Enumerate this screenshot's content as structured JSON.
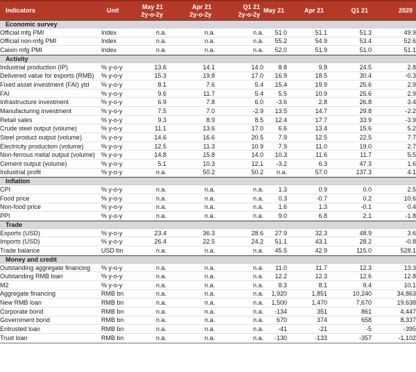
{
  "table": {
    "header": {
      "columns": [
        {
          "label": "Indicators"
        },
        {
          "label": "Unit"
        },
        {
          "label": "May 21",
          "sub": "2y-o-2y"
        },
        {
          "label": "Apr 21",
          "sub": "2y-o-2y"
        },
        {
          "label": "Q1 21",
          "sub": "2y-o-2y"
        },
        {
          "label": "May 21"
        },
        {
          "label": "Apr 21"
        },
        {
          "label": "Q1 21"
        },
        {
          "label": "2020"
        }
      ]
    },
    "sections": [
      {
        "title": "Economic survey",
        "rows": [
          {
            "indicator": "Official mfg PMI",
            "unit": "Index",
            "values": [
              "n.a.",
              "n.a.",
              "n.a.",
              "51.0",
              "51.1",
              "51.3",
              "49.9"
            ]
          },
          {
            "indicator": "Official non-mfg PMI",
            "unit": "Index",
            "values": [
              "n.a.",
              "n.a.",
              "n.a.",
              "55.2",
              "54.9",
              "53.4",
              "52.6"
            ]
          },
          {
            "indicator": "Caixin mfg PMI",
            "unit": "Index",
            "values": [
              "n.a.",
              "n.a.",
              "n.a.",
              "52.0",
              "51.9",
              "51.0",
              "51.1"
            ]
          }
        ]
      },
      {
        "title": "Activity",
        "rows": [
          {
            "indicator": "Industrial production (IP)",
            "unit": "% y-o-y",
            "values": [
              "13.6",
              "14.1",
              "14.0",
              "8.8",
              "9.8",
              "24.5",
              "2.8"
            ]
          },
          {
            "indicator": "Delivered value for exports (RMB)",
            "unit": "% y-o-y",
            "values": [
              "15.3",
              "19.8",
              "17.0",
              "16.9",
              "18.5",
              "30.4",
              "-0.3"
            ]
          },
          {
            "indicator": "Fixed asset investment (FAI) ytd",
            "unit": "% y-o-y",
            "values": [
              "8.1",
              "7.6",
              "5.4",
              "15.4",
              "19.9",
              "25.6",
              "2.9"
            ]
          },
          {
            "indicator": "FAI",
            "unit": "% y-o-y",
            "values": [
              "9.6",
              "11.7",
              "5.4",
              "5.5",
              "10.9",
              "25.6",
              "2.9"
            ]
          },
          {
            "indicator": "Infrastructure investment",
            "unit": "% y-o-y",
            "values": [
              "6.9",
              "7.8",
              "6.0",
              "-3.6",
              "2.8",
              "26.8",
              "3.4"
            ]
          },
          {
            "indicator": "Manufacturing investment",
            "unit": "% y-o-y",
            "values": [
              "7.5",
              "7.0",
              "-2.9",
              "13.5",
              "14.7",
              "29.8",
              "-2.2"
            ]
          },
          {
            "indicator": "Retail sales",
            "unit": "% y-o-y",
            "values": [
              "9.3",
              "8.9",
              "8.5",
              "12.4",
              "17.7",
              "33.9",
              "-3.9"
            ]
          },
          {
            "indicator": "Crude steel output (volume)",
            "unit": "% y-o-y",
            "values": [
              "11.1",
              "13.6",
              "17.0",
              "6.6",
              "13.4",
              "15.6",
              "5.2"
            ]
          },
          {
            "indicator": "Steel product output (volume)",
            "unit": "% y-o-y",
            "values": [
              "14.6",
              "16.6",
              "20.5",
              "7.9",
              "12.5",
              "22.5",
              "7.7"
            ]
          },
          {
            "indicator": "Electricity production (volume)",
            "unit": "% y-o-y",
            "values": [
              "12.5",
              "11.3",
              "10.9",
              "7.9",
              "11.0",
              "19.0",
              "2.7"
            ]
          },
          {
            "indicator": "Non-ferrous metal output (volume)",
            "unit": "% y-o-y",
            "values": [
              "14.8",
              "15.8",
              "14.0",
              "10.3",
              "11.6",
              "11.7",
              "5.5"
            ]
          },
          {
            "indicator": "Cement output (volume)",
            "unit": "% y-o-y",
            "values": [
              "5.1",
              "10.3",
              "12.1",
              "-3.2",
              "6.3",
              "47.3",
              "1.6"
            ]
          },
          {
            "indicator": "Industrial profit",
            "unit": "% y-o-y",
            "values": [
              "n.a.",
              "50.2",
              "50.2",
              "n.a.",
              "57.0",
              "137.3",
              "4.1"
            ]
          }
        ]
      },
      {
        "title": "Inflation",
        "rows": [
          {
            "indicator": "CPI",
            "unit": "% y-o-y",
            "values": [
              "n.a.",
              "n.a.",
              "n.a.",
              "1.3",
              "0.9",
              "0.0",
              "2.5"
            ]
          },
          {
            "indicator": "Food price",
            "unit": "% y-o-y",
            "values": [
              "n.a.",
              "n.a.",
              "n.a.",
              "0.3",
              "-0.7",
              "0.2",
              "10.6"
            ]
          },
          {
            "indicator": "Non-food price",
            "unit": "% y-o-y",
            "values": [
              "n.a.",
              "n.a.",
              "n.a.",
              "1.6",
              "1.3",
              "-0.1",
              "0.4"
            ]
          },
          {
            "indicator": "PPI",
            "unit": "% y-o-y",
            "values": [
              "n.a.",
              "n.a.",
              "n.a.",
              "9.0",
              "6.8",
              "2.1",
              "-1.8"
            ]
          }
        ]
      },
      {
        "title": "Trade",
        "rows": [
          {
            "indicator": "Exports (USD)",
            "unit": "% y-o-y",
            "values": [
              "23.4",
              "36.3",
              "28.6",
              "27.9",
              "32.3",
              "48.9",
              "3.6"
            ]
          },
          {
            "indicator": "Imports (USD)",
            "unit": "% y-o-y",
            "values": [
              "26.4",
              "22.5",
              "24.2",
              "51.1",
              "43.1",
              "28.2",
              "-0.8"
            ]
          },
          {
            "indicator": "Trade balance",
            "unit": "USD bn",
            "values": [
              "n.a.",
              "n.a.",
              "n.a.",
              "45.5",
              "42.9",
              "115.0",
              "528.1"
            ]
          }
        ]
      },
      {
        "title": "Money and credit",
        "rows": [
          {
            "indicator": "Outstanding aggregate financing",
            "unit": "% y-o-y",
            "values": [
              "n.a.",
              "n.a.",
              "n.a.",
              "11.0",
              "11.7",
              "12.3",
              "13.3"
            ]
          },
          {
            "indicator": "Outstanding RMB loan",
            "unit": "% y-o-y",
            "values": [
              "n.a.",
              "n.a.",
              "n.a.",
              "12.2",
              "12.3",
              "12.6",
              "12.8"
            ]
          },
          {
            "indicator": "M2",
            "unit": "% y-o-y",
            "values": [
              "n.a.",
              "n.a.",
              "n.a.",
              "8.3",
              "8.1",
              "9.4",
              "10.1"
            ]
          },
          {
            "indicator": "Aggregate financing",
            "unit": "RMB bn",
            "values": [
              "n.a.",
              "n.a.",
              "n.a.",
              "1,920",
              "1,851",
              "10,240",
              "34,863"
            ]
          },
          {
            "indicator": "New RMB loan",
            "unit": "RMB bn",
            "values": [
              "n.a.",
              "n.a.",
              "n.a.",
              "1,500",
              "1,470",
              "7,670",
              "19,638"
            ]
          },
          {
            "indicator": "Corporate bond",
            "unit": "RMB bn",
            "values": [
              "n.a.",
              "n.a.",
              "n.a.",
              "-134",
              "351",
              "861",
              "4,447"
            ]
          },
          {
            "indicator": "Government bond",
            "unit": "RMB bn",
            "values": [
              "n.a.",
              "n.a.",
              "n.a.",
              "670",
              "374",
              "658",
              "8,337"
            ]
          },
          {
            "indicator": "Entrusted loan",
            "unit": "RMB bn",
            "values": [
              "n.a.",
              "n.a.",
              "n.a.",
              "-41",
              "-21",
              "-5",
              "-395"
            ]
          },
          {
            "indicator": "Trust loan",
            "unit": "RMB bn",
            "values": [
              "n.a.",
              "n.a.",
              "n.a.",
              "-130",
              "-133",
              "-357",
              "-1,102"
            ]
          }
        ]
      }
    ]
  },
  "colors": {
    "header_bg": "#b43a27",
    "header_border_top": "#952b1b",
    "header_text": "#ffffff",
    "section_band_bg": "#d8d8d8",
    "section_border_top": "#555555",
    "row_divider": "#e0e0e0",
    "text": "#1a1a1a",
    "table_bottom_border": "#8a8a8a"
  }
}
